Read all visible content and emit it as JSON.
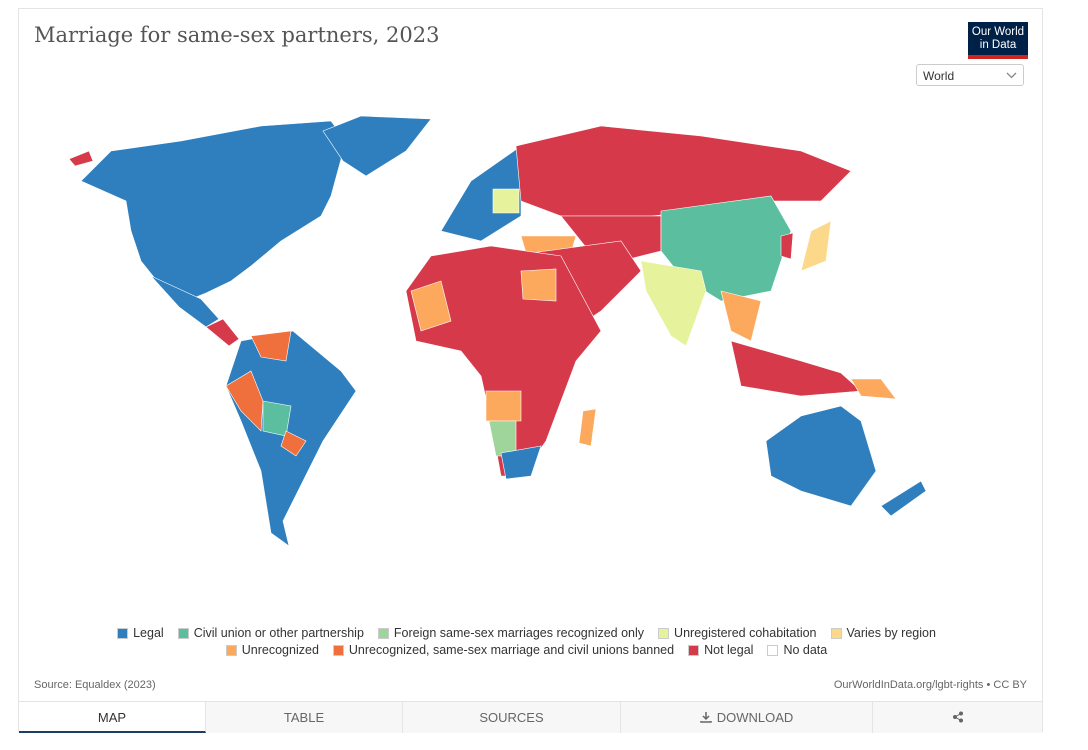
{
  "header": {
    "title": "Marriage for same-sex partners, 2023",
    "logo": [
      "Our World",
      "in Data"
    ],
    "region_select": "World"
  },
  "legend": {
    "items": [
      {
        "label": "Legal",
        "color": "#2f7fbf"
      },
      {
        "label": "Civil union or other partnership",
        "color": "#5bbf9f"
      },
      {
        "label": "Foreign same-sex marriages recognized only",
        "color": "#9fd49b"
      },
      {
        "label": "Unregistered cohabitation",
        "color": "#e6f29c"
      },
      {
        "label": "Varies by region",
        "color": "#fcd98a"
      },
      {
        "label": "Unrecognized",
        "color": "#fca95d"
      },
      {
        "label": "Unrecognized, same-sex marriage and civil unions banned",
        "color": "#f0703d"
      },
      {
        "label": "Not legal",
        "color": "#d63a4a"
      },
      {
        "label": "No data",
        "color": "#ffffff"
      }
    ]
  },
  "footer": {
    "source": "Source: Equaldex (2023)",
    "license": "OurWorldInData.org/lgbt-rights • CC BY"
  },
  "tabs": [
    "MAP",
    "TABLE",
    "SOURCES",
    "DOWNLOAD"
  ]
}
